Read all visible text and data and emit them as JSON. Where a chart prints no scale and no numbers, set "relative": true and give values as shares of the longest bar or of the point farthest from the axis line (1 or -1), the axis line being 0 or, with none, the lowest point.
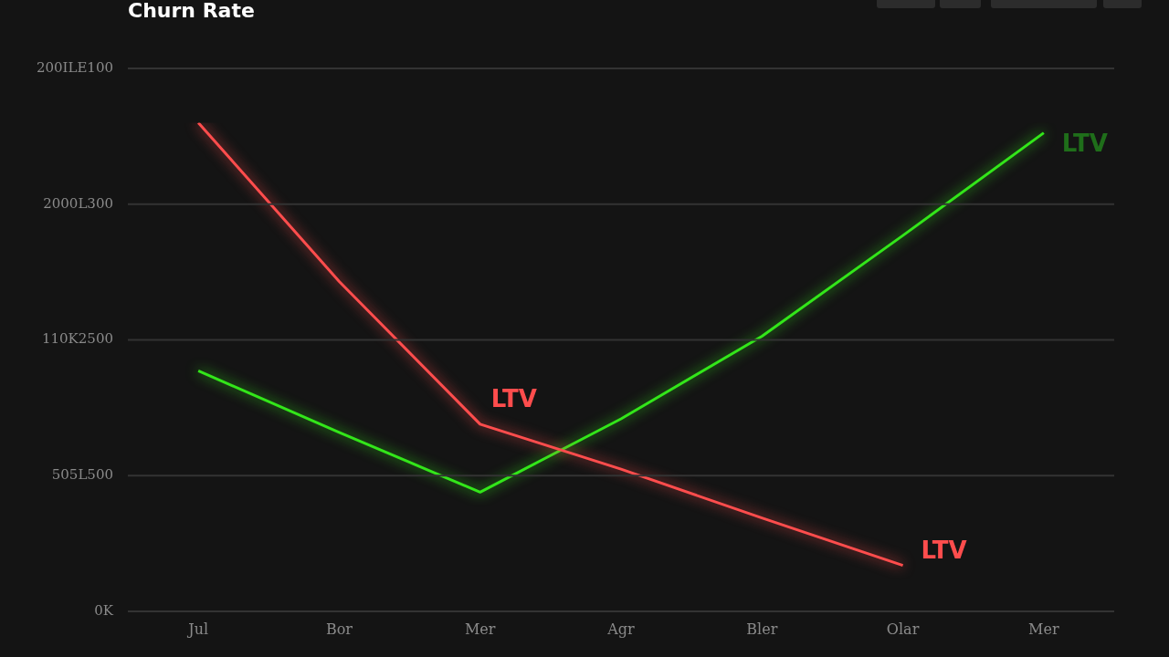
{
  "chart_data": {
    "type": "line",
    "title": "Churn Rate",
    "relative": true,
    "categories": [
      "Jul",
      "Bor",
      "Mer",
      "Agr",
      "Bler",
      "Olar",
      "Mer"
    ],
    "series": [
      {
        "name": "LTV",
        "color": "#ff4d4d",
        "values": [
          1,
          0.675,
          0.383,
          0.291,
          0.191,
          0.094,
          null
        ]
      },
      {
        "name": "LTV",
        "color": "#33e61a",
        "values": [
          0.492,
          0.366,
          0.244,
          0.394,
          0.563,
          0.769,
          0.979
        ]
      }
    ],
    "annotations": [
      "200ILE100",
      "2000L300",
      "110K2500",
      "505L500",
      "0K",
      {
        "text": "LTV",
        "x": "Mer",
        "y": 0.383
      }
    ],
    "grid": "y",
    "marker": "none",
    "line_style": "solid",
    "legend": false
  }
}
